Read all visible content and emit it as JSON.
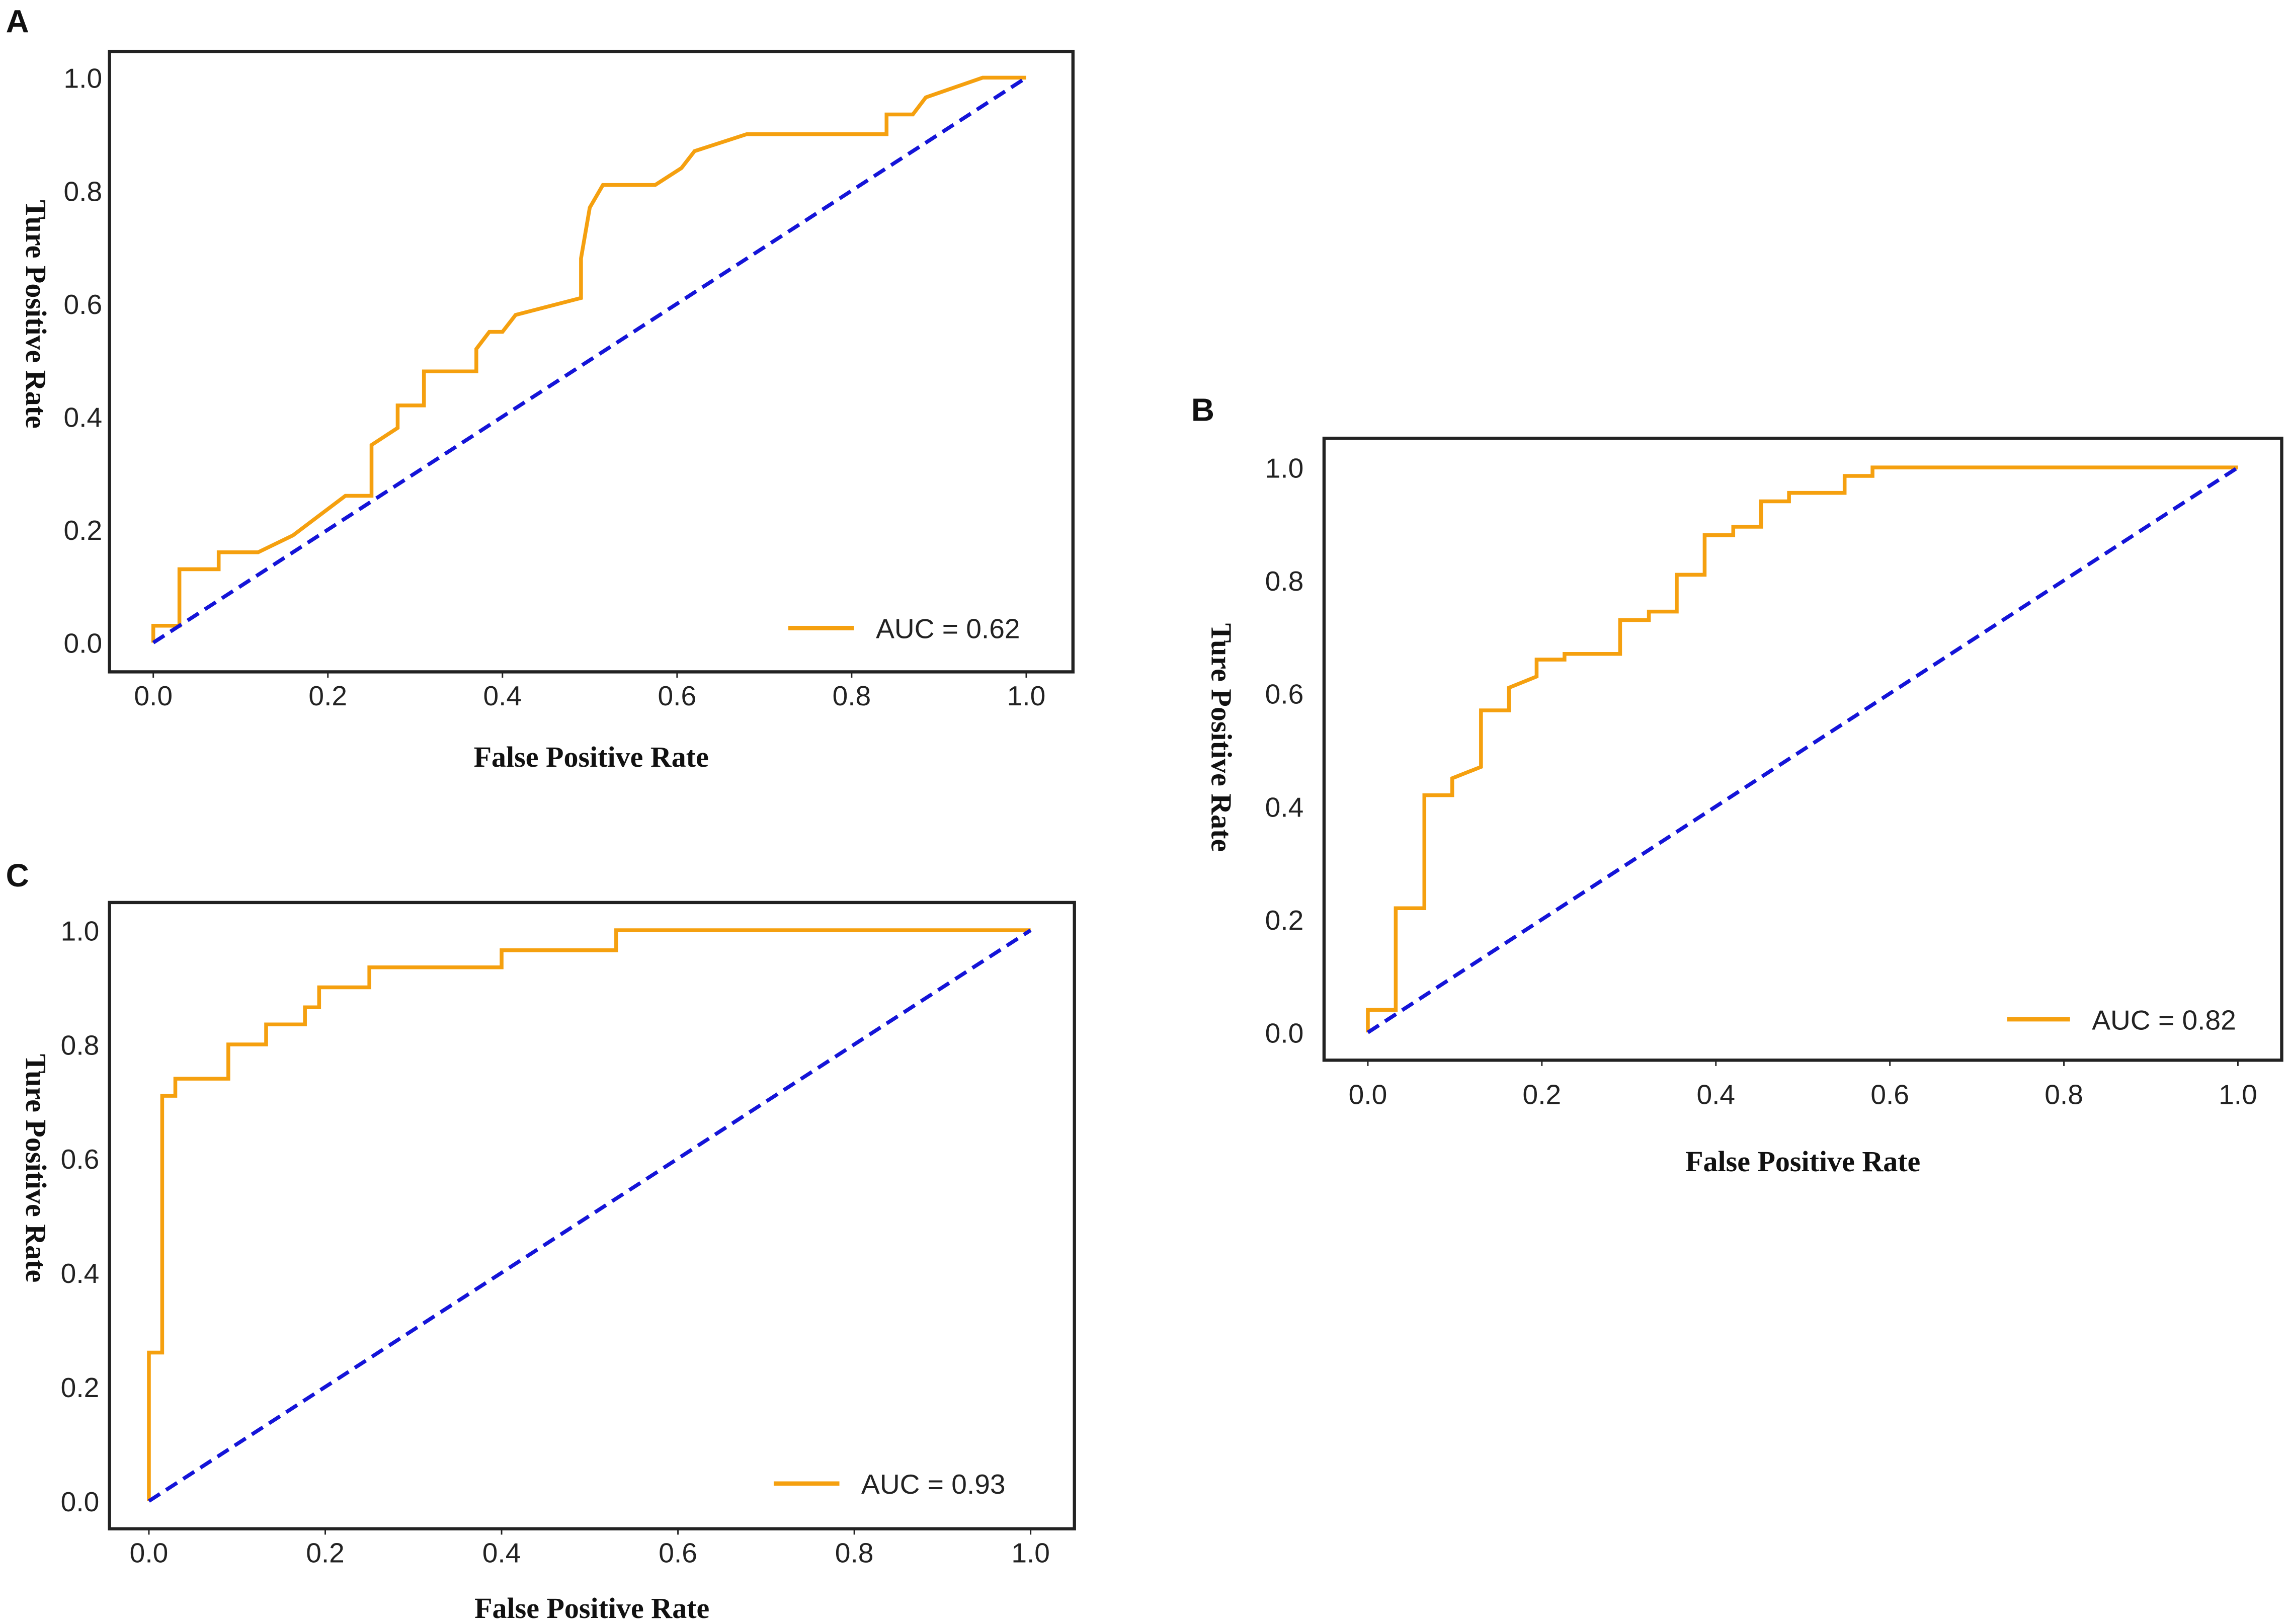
{
  "colors": {
    "roc": "#F5A00F",
    "chance": "#1414D8",
    "frame": "#222222"
  },
  "chart_data": [
    {
      "type": "line",
      "panel_label": "A",
      "xlabel": "False Positive Rate",
      "ylabel": "Ture Positive Rate",
      "xlim": [
        0,
        1
      ],
      "ylim": [
        0,
        1
      ],
      "xticks": [
        "0.0",
        "0.2",
        "0.4",
        "0.6",
        "0.8",
        "1.0"
      ],
      "yticks": [
        "0.0",
        "0.2",
        "0.4",
        "0.6",
        "0.8",
        "1.0"
      ],
      "grid": false,
      "legend": {
        "entry": "AUC = 0.62",
        "placement": "lower-right"
      },
      "series": [
        {
          "name": "AUC = 0.62",
          "style": "solid",
          "x": [
            0,
            0,
            0.03,
            0.03,
            0.075,
            0.075,
            0.12,
            0.16,
            0.22,
            0.25,
            0.25,
            0.28,
            0.28,
            0.31,
            0.31,
            0.37,
            0.37,
            0.385,
            0.4,
            0.415,
            0.49,
            0.49,
            0.5,
            0.515,
            0.575,
            0.605,
            0.62,
            0.68,
            0.84,
            0.84,
            0.87,
            0.885,
            0.95,
            1
          ],
          "y": [
            0,
            0.03,
            0.03,
            0.13,
            0.13,
            0.16,
            0.16,
            0.19,
            0.26,
            0.26,
            0.35,
            0.38,
            0.42,
            0.42,
            0.48,
            0.48,
            0.52,
            0.55,
            0.55,
            0.58,
            0.61,
            0.68,
            0.77,
            0.81,
            0.81,
            0.84,
            0.87,
            0.9,
            0.9,
            0.935,
            0.935,
            0.965,
            1,
            1
          ]
        },
        {
          "name": "chance",
          "style": "dashed",
          "x": [
            0,
            1
          ],
          "y": [
            0,
            1
          ]
        }
      ]
    },
    {
      "type": "line",
      "panel_label": "B",
      "xlabel": "False Positive Rate",
      "ylabel": "Ture Positive Rate",
      "xlim": [
        0,
        1
      ],
      "ylim": [
        0,
        1
      ],
      "xticks": [
        "0.0",
        "0.2",
        "0.4",
        "0.6",
        "0.8",
        "1.0"
      ],
      "yticks": [
        "0.0",
        "0.2",
        "0.4",
        "0.6",
        "0.8",
        "1.0"
      ],
      "grid": false,
      "legend": {
        "entry": "AUC = 0.82",
        "placement": "lower-right"
      },
      "series": [
        {
          "name": "AUC = 0.82",
          "style": "solid",
          "x": [
            0,
            0,
            0.032,
            0.032,
            0.065,
            0.065,
            0.097,
            0.097,
            0.13,
            0.13,
            0.162,
            0.162,
            0.194,
            0.194,
            0.226,
            0.226,
            0.29,
            0.29,
            0.323,
            0.323,
            0.355,
            0.355,
            0.387,
            0.387,
            0.42,
            0.42,
            0.452,
            0.452,
            0.484,
            0.484,
            0.548,
            0.548,
            0.58,
            0.58,
            1
          ],
          "y": [
            0,
            0.04,
            0.04,
            0.22,
            0.22,
            0.42,
            0.42,
            0.45,
            0.47,
            0.57,
            0.57,
            0.61,
            0.63,
            0.66,
            0.66,
            0.67,
            0.67,
            0.73,
            0.73,
            0.745,
            0.745,
            0.81,
            0.81,
            0.88,
            0.88,
            0.895,
            0.895,
            0.94,
            0.94,
            0.955,
            0.955,
            0.985,
            0.985,
            1,
            1
          ]
        },
        {
          "name": "chance",
          "style": "dashed",
          "x": [
            0,
            1
          ],
          "y": [
            0,
            1
          ]
        }
      ]
    },
    {
      "type": "line",
      "panel_label": "C",
      "xlabel": "False Positive Rate",
      "ylabel": "Ture Positive Rate",
      "xlim": [
        0,
        1
      ],
      "ylim": [
        0,
        1
      ],
      "xticks": [
        "0.0",
        "0.2",
        "0.4",
        "0.6",
        "0.8",
        "1.0"
      ],
      "yticks": [
        "0.0",
        "0.2",
        "0.4",
        "0.6",
        "0.8",
        "1.0"
      ],
      "grid": false,
      "legend": {
        "entry": "AUC = 0.93",
        "placement": "lower-right"
      },
      "series": [
        {
          "name": "AUC = 0.93",
          "style": "solid",
          "x": [
            0,
            0,
            0.015,
            0.015,
            0.03,
            0.03,
            0.09,
            0.09,
            0.133,
            0.133,
            0.177,
            0.177,
            0.193,
            0.193,
            0.25,
            0.25,
            0.4,
            0.4,
            0.53,
            0.53,
            1
          ],
          "y": [
            0,
            0.26,
            0.26,
            0.71,
            0.71,
            0.74,
            0.74,
            0.8,
            0.8,
            0.835,
            0.835,
            0.865,
            0.865,
            0.9,
            0.9,
            0.935,
            0.935,
            0.965,
            0.965,
            1,
            1
          ]
        },
        {
          "name": "chance",
          "style": "dashed",
          "x": [
            0,
            1
          ],
          "y": [
            0,
            1
          ]
        }
      ]
    }
  ]
}
